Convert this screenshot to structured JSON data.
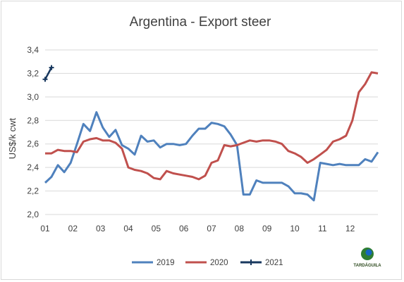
{
  "chart_data": {
    "type": "line",
    "title": "Argentina - Export steer",
    "ylabel": "US$/k cwt",
    "xlabel": "",
    "ylim": [
      2.0,
      3.4
    ],
    "yticks": [
      "2,0",
      "2,2",
      "2,4",
      "2,6",
      "2,8",
      "3,0",
      "3,2",
      "3,4"
    ],
    "xlim": [
      1,
      13
    ],
    "xticks": [
      "01",
      "02",
      "03",
      "04",
      "05",
      "06",
      "07",
      "08",
      "09",
      "10",
      "11",
      "12"
    ],
    "grid": "horizontal",
    "legend_position": "bottom",
    "series": [
      {
        "name": "2019",
        "color": "#4f81bd",
        "x": [
          1.0,
          1.23,
          1.46,
          1.69,
          1.92,
          2.15,
          2.38,
          2.62,
          2.85,
          3.08,
          3.31,
          3.54,
          3.77,
          4.0,
          4.23,
          4.46,
          4.69,
          4.92,
          5.15,
          5.38,
          5.62,
          5.85,
          6.08,
          6.31,
          6.54,
          6.77,
          7.0,
          7.23,
          7.46,
          7.69,
          7.92,
          8.15,
          8.38,
          8.62,
          8.85,
          9.08,
          9.31,
          9.54,
          9.77,
          10.0,
          10.23,
          10.46,
          10.69,
          10.92,
          11.15,
          11.38,
          11.62,
          11.85,
          12.08,
          12.31,
          12.54,
          12.77,
          13.0
        ],
        "y": [
          2.27,
          2.32,
          2.42,
          2.36,
          2.44,
          2.6,
          2.77,
          2.71,
          2.87,
          2.74,
          2.66,
          2.72,
          2.59,
          2.56,
          2.51,
          2.67,
          2.62,
          2.63,
          2.57,
          2.6,
          2.6,
          2.59,
          2.6,
          2.67,
          2.73,
          2.73,
          2.78,
          2.77,
          2.75,
          2.68,
          2.59,
          2.17,
          2.17,
          2.29,
          2.27,
          2.27,
          2.27,
          2.27,
          2.24,
          2.18,
          2.18,
          2.17,
          2.12,
          2.44,
          2.43,
          2.42,
          2.43,
          2.42,
          2.42,
          2.42,
          2.47,
          2.45,
          2.53
        ]
      },
      {
        "name": "2020",
        "color": "#c0504d",
        "x": [
          1.0,
          1.23,
          1.46,
          1.69,
          1.92,
          2.15,
          2.38,
          2.62,
          2.85,
          3.08,
          3.31,
          3.54,
          3.77,
          4.0,
          4.23,
          4.46,
          4.69,
          4.92,
          5.15,
          5.38,
          5.62,
          5.85,
          6.08,
          6.31,
          6.54,
          6.77,
          7.0,
          7.23,
          7.46,
          7.69,
          7.92,
          8.15,
          8.38,
          8.62,
          8.85,
          9.08,
          9.31,
          9.54,
          9.77,
          10.0,
          10.23,
          10.46,
          10.69,
          10.92,
          11.15,
          11.38,
          11.62,
          11.85,
          12.08,
          12.31,
          12.54,
          12.77,
          13.0
        ],
        "y": [
          2.52,
          2.52,
          2.55,
          2.54,
          2.54,
          2.53,
          2.62,
          2.64,
          2.65,
          2.63,
          2.63,
          2.61,
          2.56,
          2.4,
          2.38,
          2.37,
          2.35,
          2.31,
          2.3,
          2.37,
          2.35,
          2.34,
          2.33,
          2.32,
          2.3,
          2.33,
          2.44,
          2.46,
          2.59,
          2.58,
          2.59,
          2.61,
          2.63,
          2.62,
          2.63,
          2.63,
          2.62,
          2.6,
          2.54,
          2.52,
          2.49,
          2.44,
          2.47,
          2.51,
          2.55,
          2.62,
          2.64,
          2.67,
          2.8,
          3.04,
          3.11,
          3.21,
          3.2
        ]
      },
      {
        "name": "2021",
        "color": "#17375e",
        "x": [
          1.0,
          1.23
        ],
        "y": [
          3.15,
          3.25
        ]
      }
    ]
  },
  "logo": {
    "text": "TARDÁGUILA"
  }
}
